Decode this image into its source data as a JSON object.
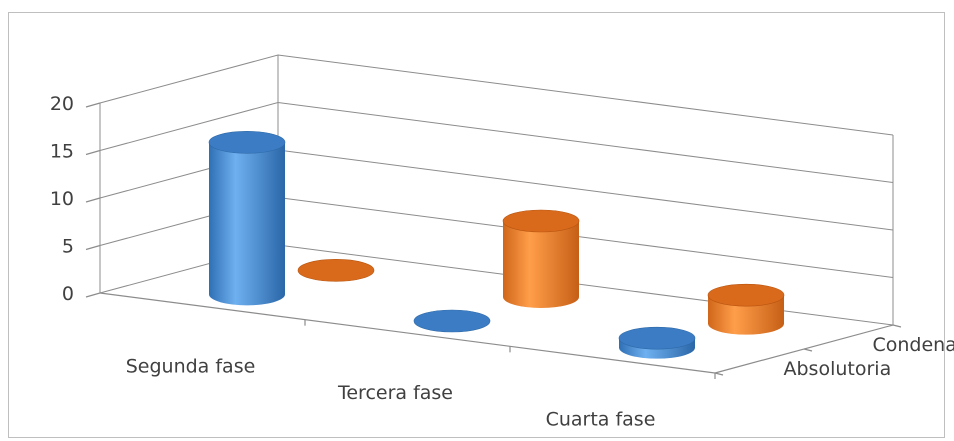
{
  "chart_data": {
    "type": "bar",
    "style": "3d-cylinder",
    "categories": [
      "Segunda fase",
      "Tercera fase",
      "Cuarta fase"
    ],
    "series": [
      {
        "name": "Absolutoria",
        "values": [
          16,
          0,
          1
        ],
        "color": "#4a8fd6"
      },
      {
        "name": "Condenatoria",
        "values": [
          0,
          8,
          3
        ],
        "color": "#f28a2e"
      }
    ],
    "yticks": [
      "0",
      "5",
      "10",
      "15",
      "20"
    ],
    "ylim": [
      0,
      20
    ],
    "grid": true
  }
}
